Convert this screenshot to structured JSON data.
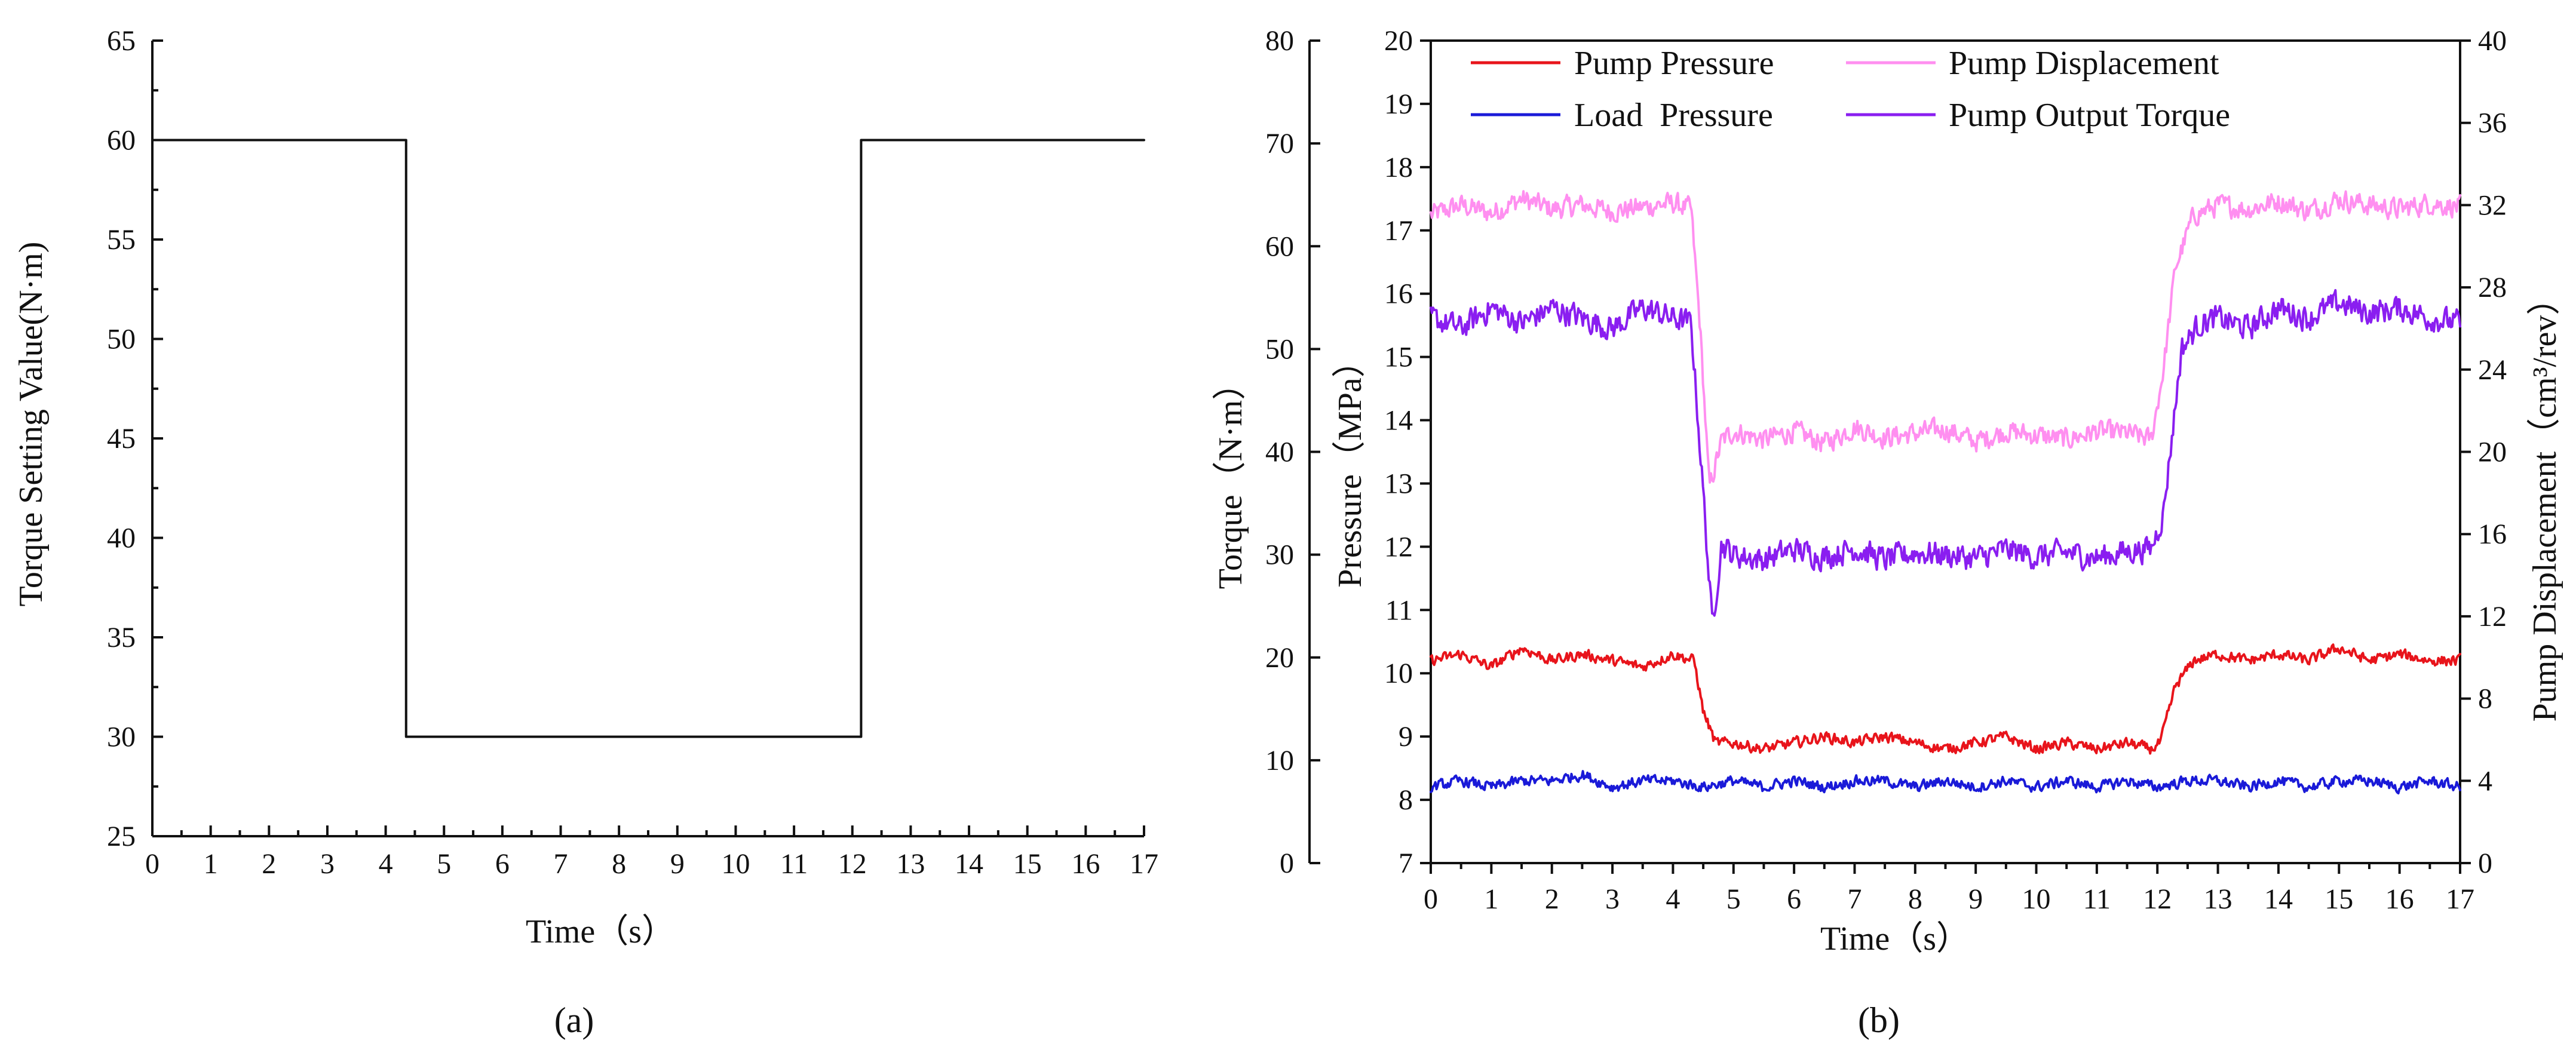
{
  "figure": {
    "panel_a_label": "(a)",
    "panel_b_label": "(b)"
  },
  "colors": {
    "axis": "#111111",
    "pump_pressure": "#e8141b",
    "load_pressure": "#1a1ad8",
    "pump_displacement": "#ff8ff0",
    "pump_output_torque": "#8a1ef0",
    "step": "#111111"
  },
  "chart_data": [
    {
      "id": "a",
      "type": "line",
      "title": "",
      "xlabel": "Time（s）",
      "ylabel": "Torque Setting Value(N·m)",
      "xlim": [
        0,
        17
      ],
      "ylim": [
        25,
        65
      ],
      "xticks": [
        "0",
        "1",
        "2",
        "3",
        "4",
        "5",
        "6",
        "7",
        "8",
        "9",
        "10",
        "11",
        "12",
        "13",
        "14",
        "15",
        "16",
        "17"
      ],
      "yticks": [
        "25",
        "30",
        "35",
        "40",
        "45",
        "50",
        "55",
        "60",
        "65"
      ],
      "series": [
        {
          "name": "Torque Setting Value",
          "x": [
            0,
            4.35,
            4.35,
            12.15,
            12.15,
            17
          ],
          "y": [
            60,
            60,
            30,
            30,
            60,
            60
          ]
        }
      ]
    },
    {
      "id": "b",
      "type": "line",
      "title": "",
      "xlabel": "Time（s）",
      "ylabel_torque": "Torque（N·m）",
      "ylabel_pressure": "Pressure（MPa）",
      "ylabel_right": "Pump Displacement（cm³/rev）",
      "xlim": [
        0,
        17
      ],
      "ylim_pressure": [
        7,
        20
      ],
      "ylim_torque": [
        0,
        80
      ],
      "ylim_right": [
        0,
        40
      ],
      "xticks": [
        "0",
        "1",
        "2",
        "3",
        "4",
        "5",
        "6",
        "7",
        "8",
        "9",
        "10",
        "11",
        "12",
        "13",
        "14",
        "15",
        "16",
        "17"
      ],
      "yticks_pressure": [
        "7",
        "8",
        "9",
        "10",
        "11",
        "12",
        "13",
        "14",
        "15",
        "16",
        "17",
        "18",
        "19",
        "20"
      ],
      "yticks_torque": [
        "0",
        "10",
        "20",
        "30",
        "40",
        "50",
        "60",
        "70",
        "80"
      ],
      "yticks_right": [
        "0",
        "4",
        "8",
        "12",
        "16",
        "20",
        "24",
        "28",
        "32",
        "36",
        "40"
      ],
      "legend": [
        "Pump Pressure",
        "Pump Displacement",
        "Load  Pressure",
        "Pump Output Torque"
      ],
      "legend_position": "top",
      "series": [
        {
          "name": "Pump Pressure",
          "axis": "pressure",
          "x": [
            0,
            0.5,
            1,
            1.5,
            2,
            2.5,
            3,
            3.5,
            4,
            4.35,
            4.5,
            4.7,
            5,
            5.5,
            6,
            6.5,
            7,
            7.5,
            8,
            8.5,
            9,
            9.5,
            10,
            10.5,
            11,
            11.5,
            11.9,
            12.05,
            12.3,
            12.6,
            13,
            13.5,
            14,
            14.5,
            15,
            15.5,
            16,
            16.5,
            17
          ],
          "y": [
            10.2,
            10.3,
            10.1,
            10.4,
            10.2,
            10.3,
            10.2,
            10.1,
            10.3,
            10.2,
            9.4,
            8.9,
            8.9,
            8.8,
            8.9,
            9.0,
            8.9,
            9.0,
            8.9,
            8.8,
            8.9,
            9.0,
            8.8,
            8.9,
            8.8,
            8.9,
            8.8,
            8.9,
            9.8,
            10.2,
            10.3,
            10.2,
            10.3,
            10.2,
            10.4,
            10.2,
            10.3,
            10.2,
            10.2
          ]
        },
        {
          "name": "Load  Pressure",
          "axis": "pressure",
          "x": [
            0,
            0.5,
            1,
            1.5,
            2,
            2.5,
            3,
            3.5,
            4,
            4.5,
            5,
            5.5,
            6,
            6.5,
            7,
            7.5,
            8,
            8.5,
            9,
            9.5,
            10,
            10.5,
            11,
            11.5,
            12,
            12.5,
            13,
            13.5,
            14,
            14.5,
            15,
            15.5,
            16,
            16.5,
            17
          ],
          "y": [
            8.2,
            8.3,
            8.2,
            8.3,
            8.3,
            8.4,
            8.2,
            8.3,
            8.3,
            8.2,
            8.3,
            8.2,
            8.3,
            8.2,
            8.3,
            8.3,
            8.2,
            8.3,
            8.2,
            8.3,
            8.2,
            8.3,
            8.2,
            8.3,
            8.2,
            8.3,
            8.3,
            8.2,
            8.3,
            8.2,
            8.3,
            8.3,
            8.2,
            8.3,
            8.2
          ]
        },
        {
          "name": "Pump Displacement",
          "axis": "right",
          "x": [
            0,
            0.5,
            1,
            1.5,
            2,
            2.5,
            3,
            3.5,
            4,
            4.3,
            4.45,
            4.6,
            4.8,
            5,
            5.5,
            6,
            6.5,
            7,
            7.5,
            8,
            8.5,
            9,
            9.5,
            10,
            10.5,
            11,
            11.5,
            11.9,
            12.1,
            12.3,
            12.6,
            13,
            13.5,
            14,
            14.5,
            15,
            15.5,
            16,
            16.5,
            17
          ],
          "y": [
            31.5,
            32,
            31.6,
            32.3,
            31.8,
            32,
            31.7,
            31.9,
            32.1,
            31.8,
            26,
            18.2,
            20.5,
            21,
            20.6,
            21,
            20.4,
            21.2,
            20.7,
            20.9,
            21.1,
            20.5,
            21,
            20.8,
            20.6,
            21,
            20.9,
            20.6,
            24,
            29,
            31.5,
            32,
            31.8,
            32.2,
            31.7,
            32.3,
            32,
            31.8,
            32.1,
            31.9
          ]
        },
        {
          "name": "Pump Output Torque",
          "axis": "torque",
          "x": [
            0,
            0.5,
            1,
            1.5,
            2,
            2.5,
            3,
            3.5,
            4,
            4.3,
            4.5,
            4.65,
            4.8,
            5,
            5.5,
            6,
            6.5,
            7,
            7.5,
            8,
            8.5,
            9,
            9.5,
            10,
            10.5,
            11,
            11.5,
            11.9,
            12.1,
            12.4,
            12.7,
            13,
            13.5,
            14,
            14.5,
            15,
            15.5,
            16,
            16.5,
            17
          ],
          "y": [
            53,
            52,
            54,
            52.5,
            54,
            53,
            52,
            54,
            53,
            52.5,
            36,
            23,
            31,
            30,
            29.5,
            30.5,
            29.8,
            30.6,
            29.5,
            30.2,
            30,
            29.6,
            30.5,
            29.8,
            30.2,
            29.7,
            30.3,
            30.6,
            34,
            50,
            52.5,
            53,
            52,
            54,
            53,
            54.5,
            53.5,
            54,
            53,
            52.5
          ]
        }
      ]
    }
  ]
}
